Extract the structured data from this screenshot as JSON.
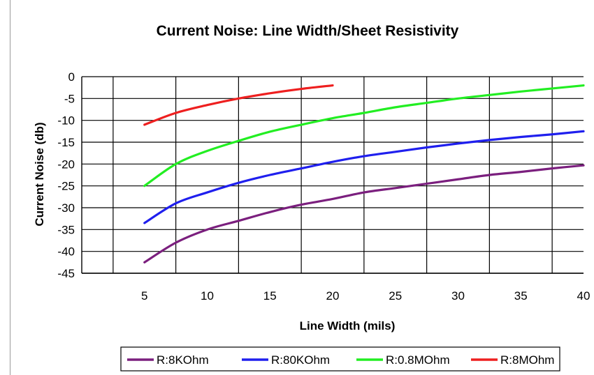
{
  "chart_data": {
    "type": "line",
    "title": "Current Noise: Line Width/Sheet Resistivity",
    "xlabel": "Line Width (mils)",
    "ylabel": "Current Noise (db)",
    "xlim": [
      0,
      40
    ],
    "ylim": [
      -45,
      0
    ],
    "xticks": [
      5,
      10,
      15,
      20,
      25,
      30,
      35,
      40
    ],
    "yticks": [
      0,
      -5,
      -10,
      -15,
      -20,
      -25,
      -30,
      -35,
      -40,
      -45
    ],
    "grid": "vertical lines at every 5 mils (2.5, 7.5 ... 37.5) and horizontal lines at every 5 db",
    "legend_position": "bottom",
    "series": [
      {
        "name": "R:8KOhm",
        "color": "#7b1f7e",
        "x": [
          5,
          7.5,
          10,
          12.5,
          15,
          17.5,
          20,
          22.5,
          25,
          27.5,
          30,
          32.5,
          35,
          37.5,
          40
        ],
        "values": [
          -42.5,
          -38.0,
          -35.0,
          -33.0,
          -31.0,
          -29.3,
          -28.0,
          -26.5,
          -25.5,
          -24.5,
          -23.5,
          -22.5,
          -21.8,
          -21.0,
          -20.3
        ]
      },
      {
        "name": "R:80KOhm",
        "color": "#1f1fee",
        "x": [
          5,
          7.5,
          10,
          12.5,
          15,
          17.5,
          20,
          22.5,
          25,
          27.5,
          30,
          32.5,
          35,
          37.5,
          40
        ],
        "values": [
          -33.5,
          -29.0,
          -26.5,
          -24.3,
          -22.5,
          -21.0,
          -19.5,
          -18.2,
          -17.2,
          -16.2,
          -15.3,
          -14.5,
          -13.8,
          -13.2,
          -12.5
        ]
      },
      {
        "name": "R:0.8MOhm",
        "color": "#22ee22",
        "x": [
          5,
          7.5,
          10,
          12.5,
          15,
          17.5,
          20,
          22.5,
          25,
          27.5,
          30,
          32.5,
          35,
          37.5,
          40
        ],
        "values": [
          -25.0,
          -20.0,
          -17.0,
          -14.7,
          -12.6,
          -11.0,
          -9.5,
          -8.3,
          -7.0,
          -6.0,
          -5.0,
          -4.2,
          -3.4,
          -2.7,
          -2.0
        ]
      },
      {
        "name": "R:8MOhm",
        "color": "#ee1f1f",
        "x": [
          5,
          7.5,
          10,
          12.5,
          15,
          17.5,
          20
        ],
        "values": [
          -11.0,
          -8.3,
          -6.5,
          -5.0,
          -3.8,
          -2.8,
          -2.0
        ]
      }
    ]
  }
}
